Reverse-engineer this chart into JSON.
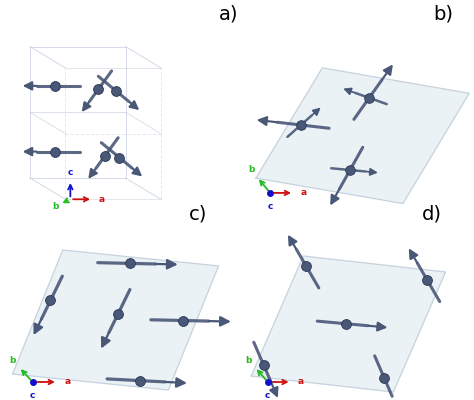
{
  "background_color": "#ffffff",
  "atom_color": "#4a5878",
  "atom_edge_color": "#2a3555",
  "arrow_color": "#4a5878",
  "edge_color": "#c0ccd8",
  "plane_fill": "#dce8f0",
  "plane_alpha": 0.55,
  "axis_colors": {
    "a": "#cc1111",
    "b": "#22bb22",
    "c": "#1111cc"
  },
  "panel_labels": [
    "a)",
    "b)",
    "c)",
    "d)"
  ],
  "label_fontsize": 14
}
